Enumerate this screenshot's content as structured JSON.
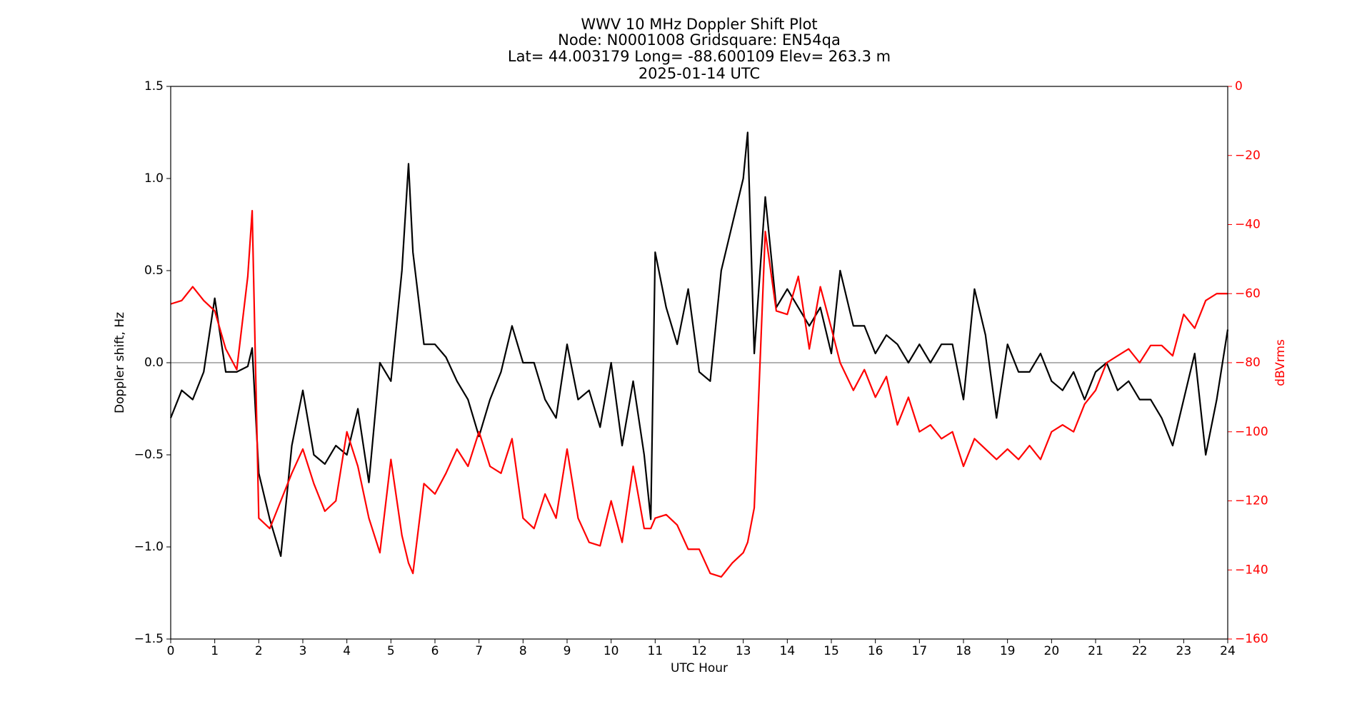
{
  "chart_data": {
    "type": "line",
    "title": [
      "WWV 10 MHz Doppler Shift Plot",
      "Node:  N0001008     Gridsquare:  EN54qa",
      "Lat= 44.003179    Long= -88.600109    Elev= 263.3 m",
      "2025-01-14  UTC"
    ],
    "xlabel": "UTC Hour",
    "ylabel": "Doppler shift, Hz",
    "y2label": "dBVrms",
    "x": [
      0,
      0.25,
      0.5,
      0.75,
      1,
      1.25,
      1.5,
      1.75,
      1.85,
      2,
      2.25,
      2.5,
      2.75,
      3,
      3.25,
      3.5,
      3.75,
      4,
      4.25,
      4.5,
      4.75,
      5,
      5.25,
      5.4,
      5.5,
      5.75,
      6,
      6.25,
      6.5,
      6.75,
      7,
      7.25,
      7.5,
      7.75,
      8,
      8.25,
      8.5,
      8.75,
      9,
      9.25,
      9.5,
      9.75,
      10,
      10.25,
      10.5,
      10.75,
      10.9,
      11,
      11.25,
      11.5,
      11.75,
      12,
      12.25,
      12.5,
      12.75,
      13,
      13.1,
      13.25,
      13.5,
      13.75,
      14,
      14.25,
      14.5,
      14.75,
      15,
      15.2,
      15.5,
      15.75,
      16,
      16.25,
      16.5,
      16.75,
      17,
      17.25,
      17.5,
      17.75,
      18,
      18.25,
      18.5,
      18.75,
      19,
      19.25,
      19.5,
      19.75,
      20,
      20.25,
      20.5,
      20.75,
      21,
      21.25,
      21.5,
      21.75,
      22,
      22.25,
      22.5,
      22.75,
      23,
      23.25,
      23.5,
      23.75,
      24
    ],
    "series": [
      {
        "color": "#000000",
        "axis": "y",
        "values": [
          -0.3,
          -0.15,
          -0.2,
          -0.05,
          0.35,
          -0.05,
          -0.05,
          -0.02,
          0.08,
          -0.6,
          -0.85,
          -1.05,
          -0.45,
          -0.15,
          -0.5,
          -0.55,
          -0.45,
          -0.5,
          -0.25,
          -0.65,
          0.0,
          -0.1,
          0.5,
          1.08,
          0.6,
          0.1,
          0.1,
          0.03,
          -0.1,
          -0.2,
          -0.4,
          -0.2,
          -0.05,
          0.2,
          0.0,
          0.0,
          -0.2,
          -0.3,
          0.1,
          -0.2,
          -0.15,
          -0.35,
          0.0,
          -0.45,
          -0.1,
          -0.5,
          -0.85,
          0.6,
          0.3,
          0.1,
          0.4,
          -0.05,
          -0.1,
          0.5,
          0.75,
          1.0,
          1.25,
          0.05,
          0.9,
          0.3,
          0.4,
          0.3,
          0.2,
          0.3,
          0.05,
          0.5,
          0.2,
          0.2,
          0.05,
          0.15,
          0.1,
          0.0,
          0.1,
          0.0,
          0.1,
          0.1,
          -0.2,
          0.4,
          0.15,
          -0.3,
          0.1,
          -0.05,
          -0.05,
          0.05,
          -0.1,
          -0.15,
          -0.05,
          -0.2,
          -0.05,
          0.0,
          -0.15,
          -0.1,
          -0.2,
          -0.2,
          -0.3,
          -0.45,
          -0.2,
          0.05,
          -0.5,
          -0.2,
          0.18
        ]
      },
      {
        "color": "#ff0000",
        "axis": "y2",
        "values": [
          -63,
          -62,
          -58,
          -62,
          -65,
          -76,
          -82,
          -55,
          -36,
          -125,
          -128,
          -120,
          -112,
          -105,
          -115,
          -123,
          -120,
          -100,
          -110,
          -125,
          -135,
          -108,
          -130,
          -138,
          -141,
          -115,
          -118,
          -112,
          -105,
          -110,
          -100,
          -110,
          -112,
          -102,
          -125,
          -128,
          -118,
          -125,
          -105,
          -125,
          -132,
          -133,
          -120,
          -132,
          -110,
          -128,
          -128,
          -125,
          -124,
          -127,
          -134,
          -134,
          -141,
          -142,
          -138,
          -135,
          -132,
          -122,
          -42,
          -65,
          -66,
          -55,
          -76,
          -58,
          -70,
          -80,
          -88,
          -82,
          -90,
          -84,
          -98,
          -90,
          -100,
          -98,
          -102,
          -100,
          -110,
          -102,
          -105,
          -108,
          -105,
          -108,
          -104,
          -108,
          -100,
          -98,
          -100,
          -92,
          -88,
          -80,
          -78,
          -76,
          -80,
          -75,
          -75,
          -78,
          -66,
          -70,
          -62,
          -60,
          -60
        ]
      }
    ],
    "xlim": [
      0,
      24
    ],
    "xticks": [
      0,
      1,
      2,
      3,
      4,
      5,
      6,
      7,
      8,
      9,
      10,
      11,
      12,
      13,
      14,
      15,
      16,
      17,
      18,
      19,
      20,
      21,
      22,
      23,
      24
    ],
    "ylim": [
      -1.5,
      1.5
    ],
    "yticks": [
      {
        "value": -1.5,
        "label": "−1.5"
      },
      {
        "value": -1.0,
        "label": "−1.0"
      },
      {
        "value": -0.5,
        "label": "−0.5"
      },
      {
        "value": 0,
        "label": "0.0"
      },
      {
        "value": 0.5,
        "label": "0.5"
      },
      {
        "value": 1.0,
        "label": "1.0"
      },
      {
        "value": 1.5,
        "label": "1.5"
      }
    ],
    "y2lim": [
      -160,
      0
    ],
    "y2ticks": [
      {
        "value": -160,
        "label": "−160"
      },
      {
        "value": -140,
        "label": "−140"
      },
      {
        "value": -120,
        "label": "−120"
      },
      {
        "value": -100,
        "label": "−100"
      },
      {
        "value": -80,
        "label": "−80"
      },
      {
        "value": -60,
        "label": "−60"
      },
      {
        "value": -40,
        "label": "−40"
      },
      {
        "value": -20,
        "label": "−20"
      },
      0
    ],
    "y2color": "#ff0000",
    "reference_line": 0,
    "reference_color": "#999999",
    "grid": false
  }
}
